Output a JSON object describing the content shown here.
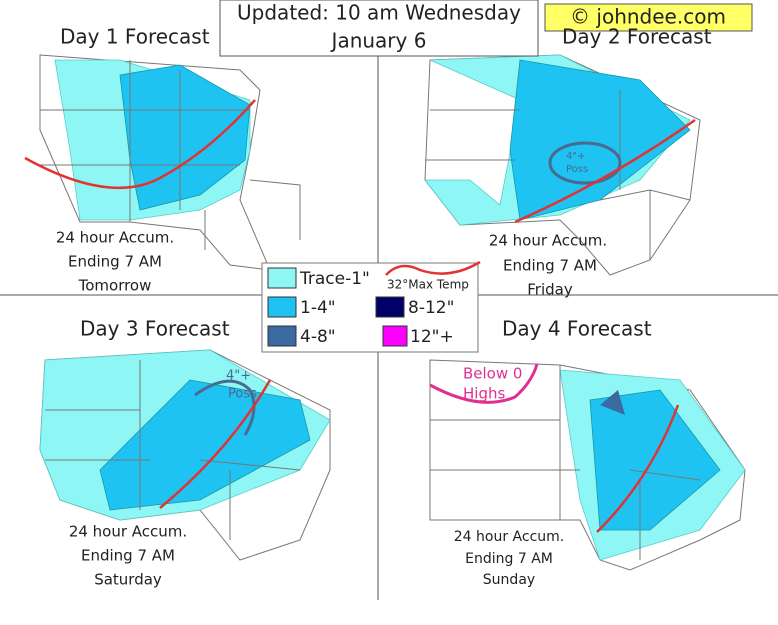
{
  "header": {
    "lines": [
      "Updated: 10 am Wednesday",
      "January 6"
    ]
  },
  "copyright": "© johndee.com",
  "panels": [
    {
      "title": "Day 1 Forecast",
      "caption": [
        "24 hour Accum.",
        "Ending 7 AM",
        "Tomorrow"
      ]
    },
    {
      "title": "Day 2 Forecast",
      "caption": [
        "24 hour Accum.",
        "Ending 7 AM",
        "Friday"
      ],
      "annotation": [
        "4\"+",
        "Poss"
      ]
    },
    {
      "title": "Day 3 Forecast",
      "caption": [
        "24 hour Accum.",
        "Ending 7 AM",
        "Saturday"
      ],
      "annotation": [
        "4\"+",
        "Poss"
      ]
    },
    {
      "title": "Day 4 Forecast",
      "caption": [
        "24 hour Accum.",
        "Ending 7 AM",
        "Sunday"
      ],
      "annotation": [
        "Below 0",
        "Highs"
      ]
    }
  ],
  "legend": {
    "items": [
      "Trace-1\"",
      "1-4\"",
      "4-8\"",
      "8-12\"",
      "12\"+"
    ],
    "max_temp": "32°Max Temp"
  }
}
